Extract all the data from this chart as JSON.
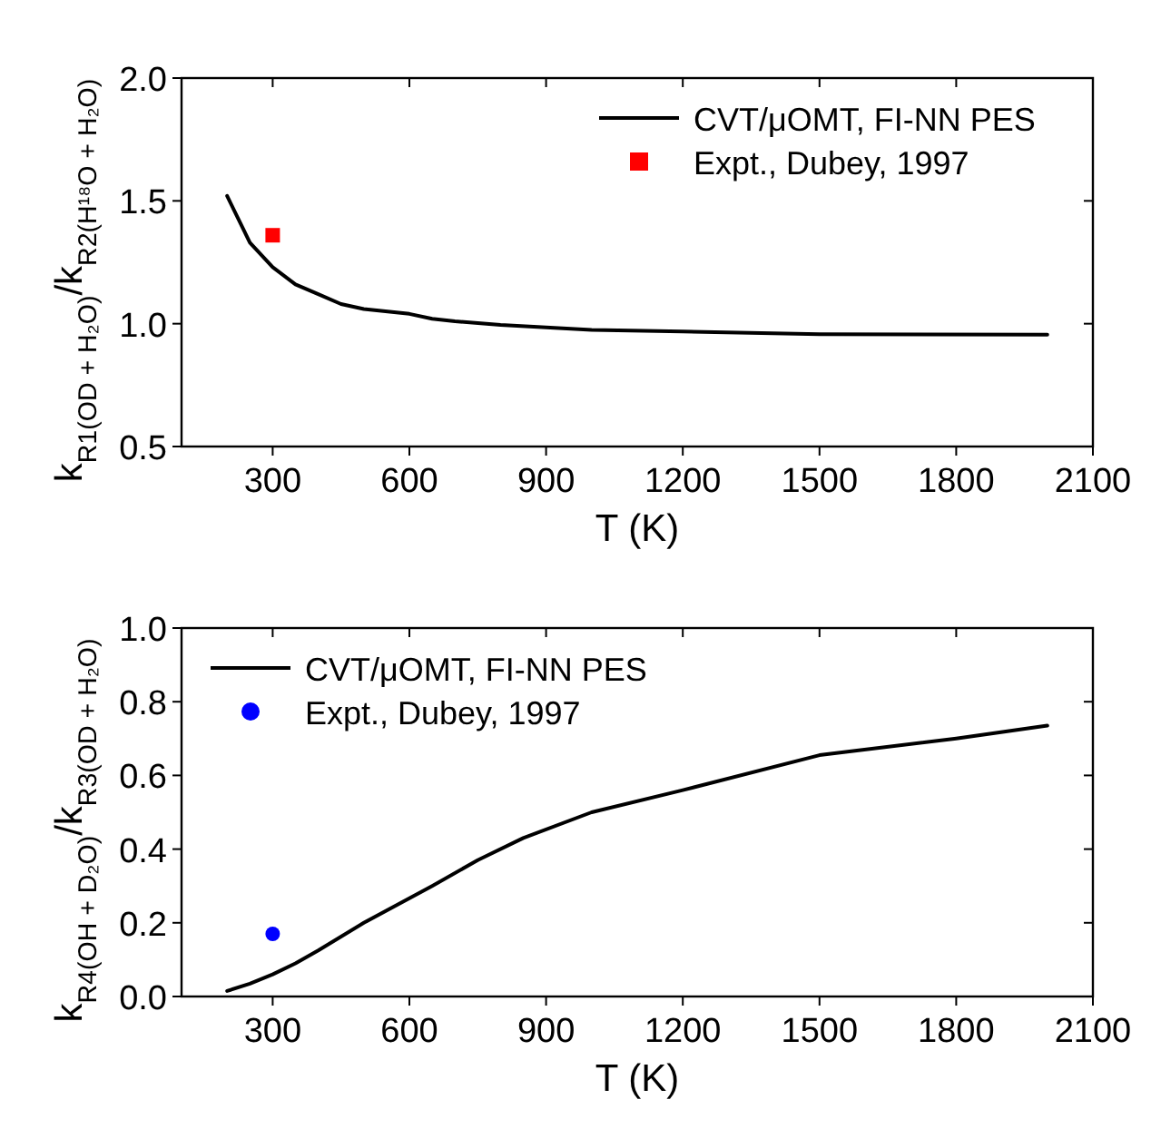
{
  "chart_data": [
    {
      "type": "line",
      "xlabel": "T (K)",
      "ylabel": "k$_{R1(OD + H₂O)}$/k$_{R2(H¹⁸O + H₂O)}$",
      "xlim": [
        100,
        2100
      ],
      "xticks": [
        300,
        600,
        900,
        1200,
        1500,
        1800,
        2100
      ],
      "ylim": [
        0.5,
        2.0
      ],
      "yticks": [
        {
          "value": 0.5,
          "label": "0.5"
        },
        {
          "value": 1.0,
          "label": "1.0"
        },
        {
          "value": 1.5,
          "label": "1.5"
        },
        {
          "value": 2.0,
          "label": "2.0"
        }
      ],
      "legend": "top right",
      "grid": false,
      "series": [
        {
          "name": "CVT/μOMT, FI-NN PES",
          "color": "#000000",
          "marker": "none",
          "line_style": "solid",
          "x": [
            200,
            250,
            300,
            350,
            400,
            450,
            500,
            600,
            650,
            700,
            800,
            900,
            1000,
            1200,
            1500,
            2000
          ],
          "values": [
            1.52,
            1.33,
            1.23,
            1.16,
            1.12,
            1.08,
            1.06,
            1.04,
            1.02,
            1.01,
            0.995,
            0.985,
            0.975,
            0.968,
            0.957,
            0.955
          ]
        },
        {
          "name": "Expt., Dubey, 1997",
          "type": "scatter",
          "color": "#ff0000",
          "marker": "square",
          "x": [
            300
          ],
          "values": [
            1.36
          ]
        }
      ]
    },
    {
      "type": "line",
      "xlabel": "T (K)",
      "ylabel": "k$_{R4(OH + D₂O)}$/k$_{R3(OD + H₂O)}$",
      "xlim": [
        100,
        2100
      ],
      "xticks": [
        300,
        600,
        900,
        1200,
        1500,
        1800,
        2100
      ],
      "ylim": [
        0.0,
        1.0
      ],
      "yticks": [
        {
          "value": 0,
          "label": "0.0"
        },
        {
          "value": 0.2,
          "label": "0.2"
        },
        {
          "value": 0.4,
          "label": "0.4"
        },
        {
          "value": 0.6,
          "label": "0.6"
        },
        {
          "value": 0.8,
          "label": "0.8"
        },
        {
          "value": 1.0,
          "label": "1.0"
        }
      ],
      "legend": "top left",
      "grid": false,
      "series": [
        {
          "name": "CVT/μOMT, FI-NN PES",
          "color": "#000000",
          "marker": "none",
          "line_style": "solid",
          "x": [
            200,
            250,
            300,
            350,
            400,
            500,
            650,
            750,
            850,
            1000,
            1200,
            1500,
            1800,
            2000
          ],
          "values": [
            0.015,
            0.035,
            0.06,
            0.09,
            0.125,
            0.2,
            0.3,
            0.37,
            0.43,
            0.5,
            0.56,
            0.655,
            0.7,
            0.735
          ]
        },
        {
          "name": "Expt., Dubey, 1997",
          "type": "scatter",
          "color": "#0000ff",
          "marker": "circle",
          "x": [
            300
          ],
          "values": [
            0.17
          ]
        }
      ]
    }
  ]
}
